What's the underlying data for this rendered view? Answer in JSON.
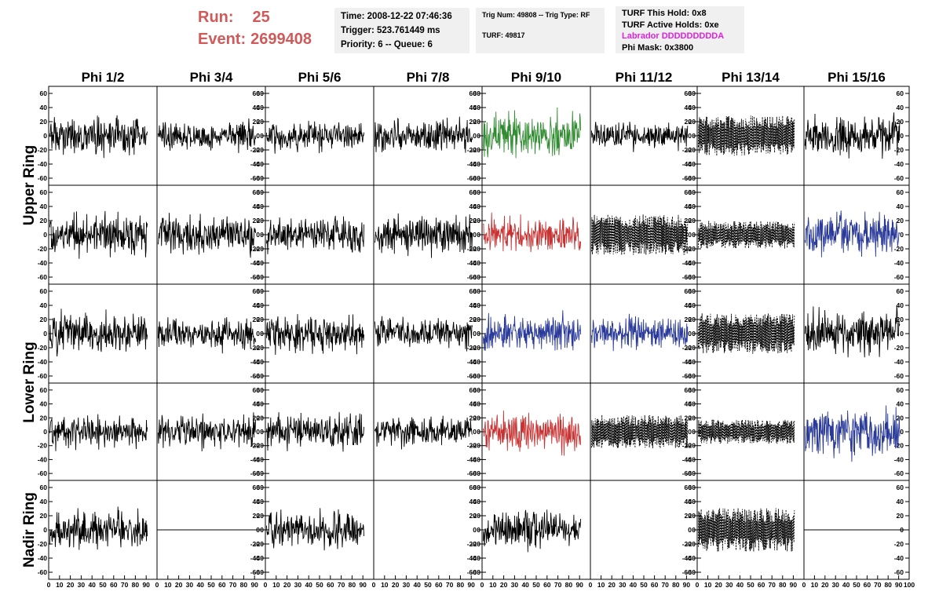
{
  "header": {
    "run_label": "Run:",
    "run_value": "25",
    "event_label": "Event:",
    "event_value": "2699408"
  },
  "info": {
    "time": "Time: 2008-12-22 07:46:36",
    "trigger": "Trigger: 523.761449 ms",
    "priority": "Priority: 6 -- Queue: 6",
    "trig_num": "Trig Num: 49808 -- Trig Type: RF",
    "turf": "TURF: 49817",
    "turf_hold": "TURF This Hold: 0x8",
    "turf_active": "TURF Active Holds: 0xe",
    "labrador": "Labrador DDDDDDDDDA",
    "phi_mask": "Phi Mask: 0x3800"
  },
  "colors": {
    "header_red": "#d05a5a",
    "magenta": "#e020e0",
    "black": "#000000",
    "green": "#2e8b2e",
    "red": "#c83232",
    "blue": "#2a3a9a"
  },
  "chart_data": {
    "type": "line",
    "columns": [
      "Phi 1/2",
      "Phi 3/4",
      "Phi 5/6",
      "Phi 7/8",
      "Phi 9/10",
      "Phi 11/12",
      "Phi 13/14",
      "Phi 15/16"
    ],
    "rows": [
      "Upper Ring",
      "Upper Ring",
      "Lower Ring",
      "Lower Ring",
      "Nadir Ring"
    ],
    "row_labels": [
      "Upper Ring",
      "Lower Ring",
      "Nadir Ring"
    ],
    "xlim": [
      0,
      100
    ],
    "ylim": [
      -70,
      70
    ],
    "y_ticks": [
      -60,
      -40,
      -20,
      0,
      20,
      40,
      60
    ],
    "x_ticks": [
      0,
      10,
      20,
      30,
      40,
      50,
      60,
      70,
      80,
      90,
      100
    ],
    "x_tick_labels": [
      "0",
      "10",
      "20",
      "30",
      "40",
      "50",
      "60",
      "70",
      "80",
      "90",
      "100"
    ],
    "grid": false,
    "panels": [
      [
        {
          "color": "black",
          "style": "solid",
          "amp": 18
        },
        {
          "color": "black",
          "style": "solid",
          "amp": 14
        },
        {
          "color": "black",
          "style": "solid",
          "amp": 14
        },
        {
          "color": "black",
          "style": "solid",
          "amp": 16
        },
        {
          "color": "green",
          "style": "solid",
          "amp": 22
        },
        {
          "color": "black",
          "style": "solid",
          "amp": 14
        },
        {
          "color": "black",
          "style": "dashed",
          "amp": 26
        },
        {
          "color": "black",
          "style": "solid",
          "amp": 20
        }
      ],
      [
        {
          "color": "black",
          "style": "solid",
          "amp": 20
        },
        {
          "color": "black",
          "style": "solid",
          "amp": 18
        },
        {
          "color": "black",
          "style": "solid",
          "amp": 18
        },
        {
          "color": "black",
          "style": "solid",
          "amp": 18
        },
        {
          "color": "red",
          "style": "solid",
          "amp": 18
        },
        {
          "color": "black",
          "style": "dashed",
          "amp": 26
        },
        {
          "color": "black",
          "style": "dashed",
          "amp": 18
        },
        {
          "color": "blue",
          "style": "solid",
          "amp": 22
        }
      ],
      [
        {
          "color": "black",
          "style": "solid",
          "amp": 20
        },
        {
          "color": "black",
          "style": "solid",
          "amp": 16
        },
        {
          "color": "black",
          "style": "solid",
          "amp": 18
        },
        {
          "color": "black",
          "style": "solid",
          "amp": 16
        },
        {
          "color": "blue",
          "style": "solid",
          "amp": 18
        },
        {
          "color": "blue",
          "style": "solid",
          "amp": 16
        },
        {
          "color": "black",
          "style": "dashed",
          "amp": 26
        },
        {
          "color": "black",
          "style": "solid",
          "amp": 22
        }
      ],
      [
        {
          "color": "black",
          "style": "solid",
          "amp": 16
        },
        {
          "color": "black",
          "style": "solid",
          "amp": 16
        },
        {
          "color": "black",
          "style": "solid",
          "amp": 18
        },
        {
          "color": "black",
          "style": "solid",
          "amp": 14
        },
        {
          "color": "red",
          "style": "solid",
          "amp": 20
        },
        {
          "color": "black",
          "style": "dashed",
          "amp": 22
        },
        {
          "color": "black",
          "style": "dashed",
          "amp": 16
        },
        {
          "color": "blue",
          "style": "solid",
          "amp": 24
        }
      ],
      [
        {
          "color": "black",
          "style": "solid",
          "amp": 18
        },
        {
          "color": "black",
          "style": "flat",
          "amp": 0
        },
        {
          "color": "black",
          "style": "solid",
          "amp": 18
        },
        {
          "color": "black",
          "style": "none",
          "amp": 0
        },
        {
          "color": "black",
          "style": "solid",
          "amp": 18
        },
        {
          "color": "black",
          "style": "none",
          "amp": 0
        },
        {
          "color": "black",
          "style": "dashed",
          "amp": 28
        },
        {
          "color": "black",
          "style": "flat",
          "amp": 0
        }
      ]
    ]
  }
}
